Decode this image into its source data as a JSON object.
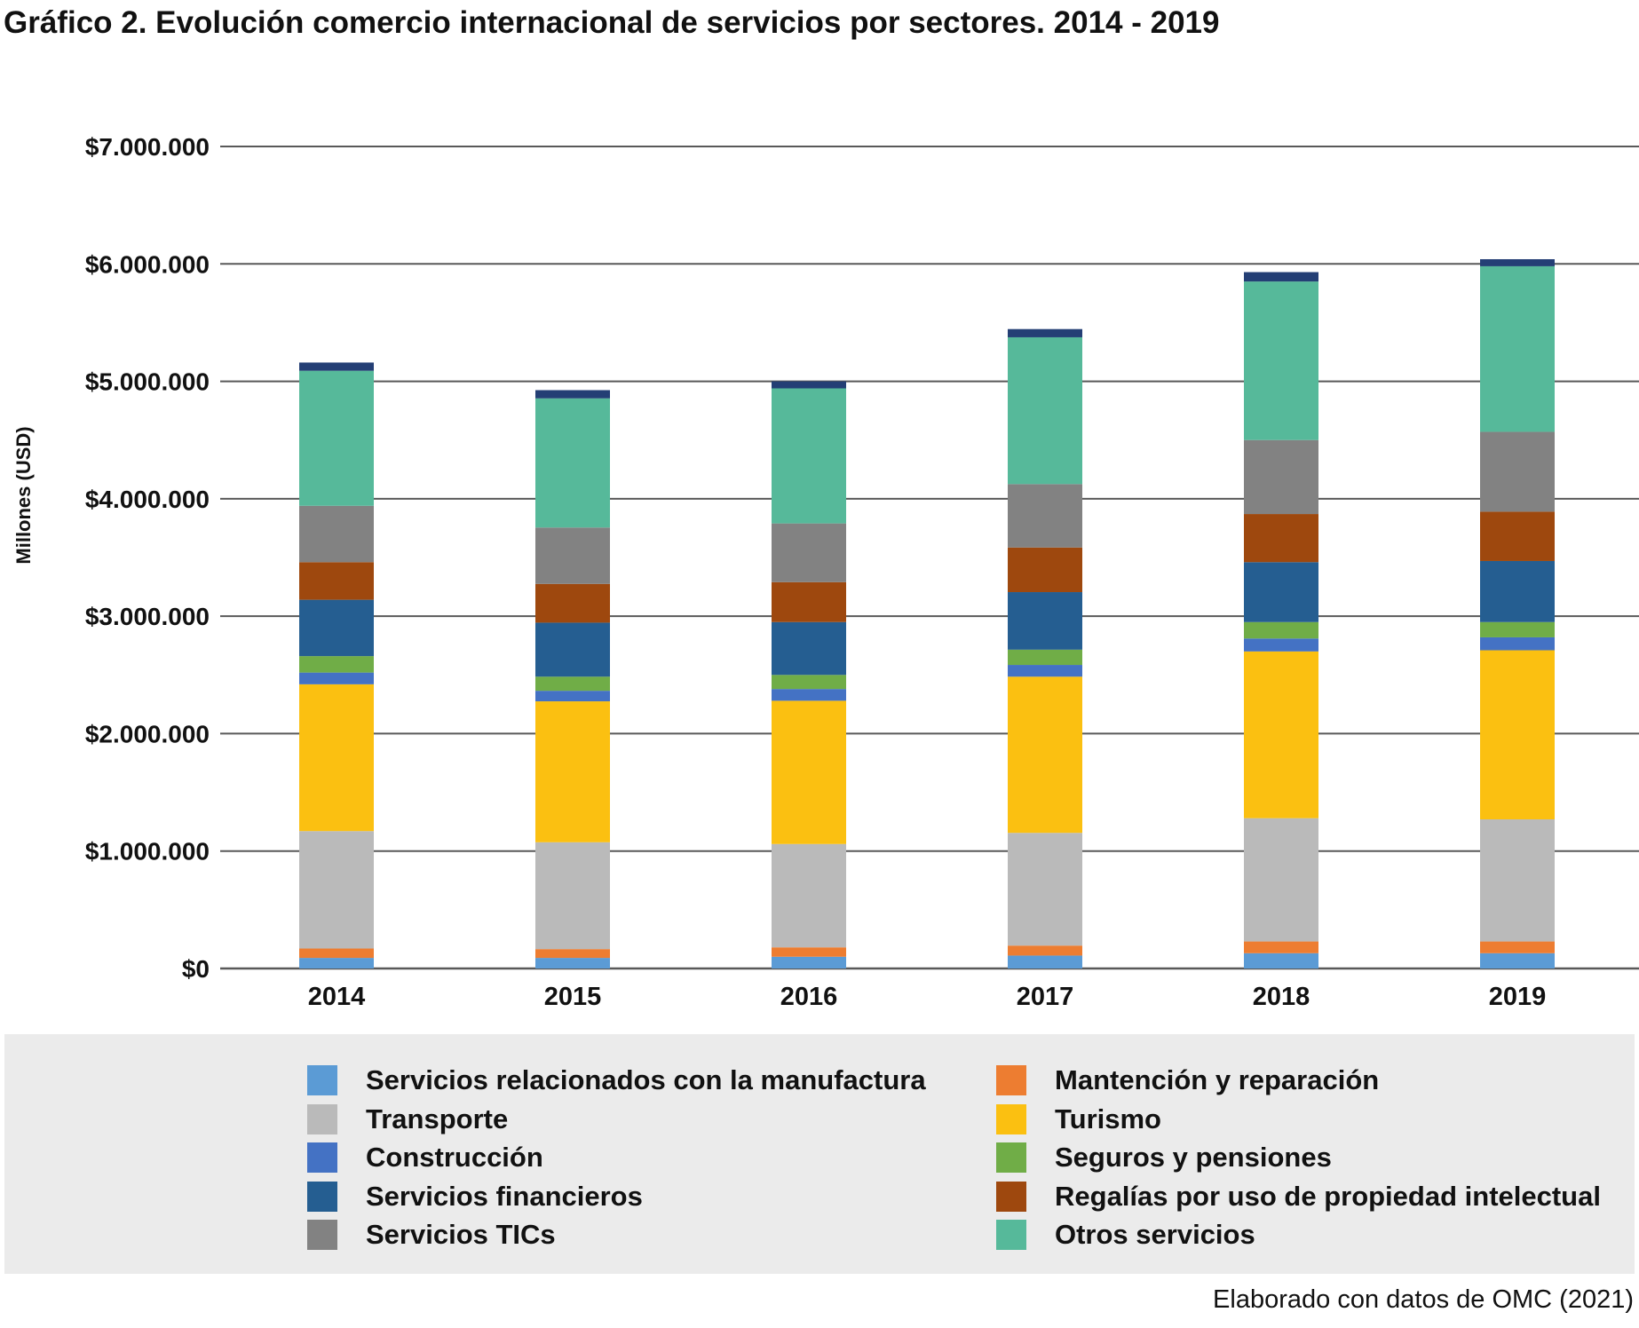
{
  "chart_data": {
    "type": "bar",
    "stacked": true,
    "title": "Gráfico 2. Evolución comercio internacional de servicios por sectores. 2014 - 2019",
    "ylabel": "Millones (USD)",
    "xlabel": "",
    "ylim": [
      0,
      7000000
    ],
    "y_ticks": [
      0,
      1000000,
      2000000,
      3000000,
      4000000,
      5000000,
      6000000,
      7000000
    ],
    "y_tick_labels": [
      "$0",
      "$1.000.000",
      "$2.000.000",
      "$3.000.000",
      "$4.000.000",
      "$5.000.000",
      "$6.000.000",
      "$7.000.000"
    ],
    "grid": true,
    "legend_position": "bottom",
    "categories": [
      "2014",
      "2015",
      "2016",
      "2017",
      "2018",
      "2019"
    ],
    "series": [
      {
        "name": "Servicios relacionados con la manufactura",
        "color": "#5b9bd5",
        "values": [
          90000,
          90000,
          100000,
          110000,
          130000,
          130000
        ]
      },
      {
        "name": "Mantención y reparación",
        "color": "#ed7d31",
        "values": [
          80000,
          75000,
          80000,
          85000,
          100000,
          100000
        ]
      },
      {
        "name": "Transporte",
        "color": "#bababa",
        "values": [
          1000000,
          910000,
          880000,
          960000,
          1050000,
          1040000
        ]
      },
      {
        "name": "Turismo",
        "color": "#fbc011",
        "values": [
          1250000,
          1200000,
          1220000,
          1330000,
          1420000,
          1440000
        ]
      },
      {
        "name": "Construcción",
        "color": "#4472c4",
        "values": [
          100000,
          90000,
          100000,
          100000,
          110000,
          110000
        ]
      },
      {
        "name": "Seguros y pensiones",
        "color": "#70ad47",
        "values": [
          140000,
          120000,
          120000,
          130000,
          140000,
          130000
        ]
      },
      {
        "name": "Servicios financieros",
        "color": "#255e91",
        "values": [
          480000,
          460000,
          450000,
          490000,
          510000,
          520000
        ]
      },
      {
        "name": "Regalías por uso de propiedad intelectual",
        "color": "#9e480e",
        "values": [
          320000,
          330000,
          340000,
          380000,
          410000,
          420000
        ]
      },
      {
        "name": "Servicios TICs",
        "color": "#828282",
        "values": [
          480000,
          480000,
          500000,
          540000,
          630000,
          680000
        ]
      },
      {
        "name": "Otros servicios",
        "color": "#56b99a",
        "values": [
          1150000,
          1100000,
          1150000,
          1250000,
          1350000,
          1410000
        ]
      },
      {
        "name": "",
        "color": "#243f75",
        "values": [
          70000,
          70000,
          60000,
          70000,
          80000,
          60000
        ]
      }
    ]
  },
  "source": "Elaborado con datos de OMC (2021)"
}
